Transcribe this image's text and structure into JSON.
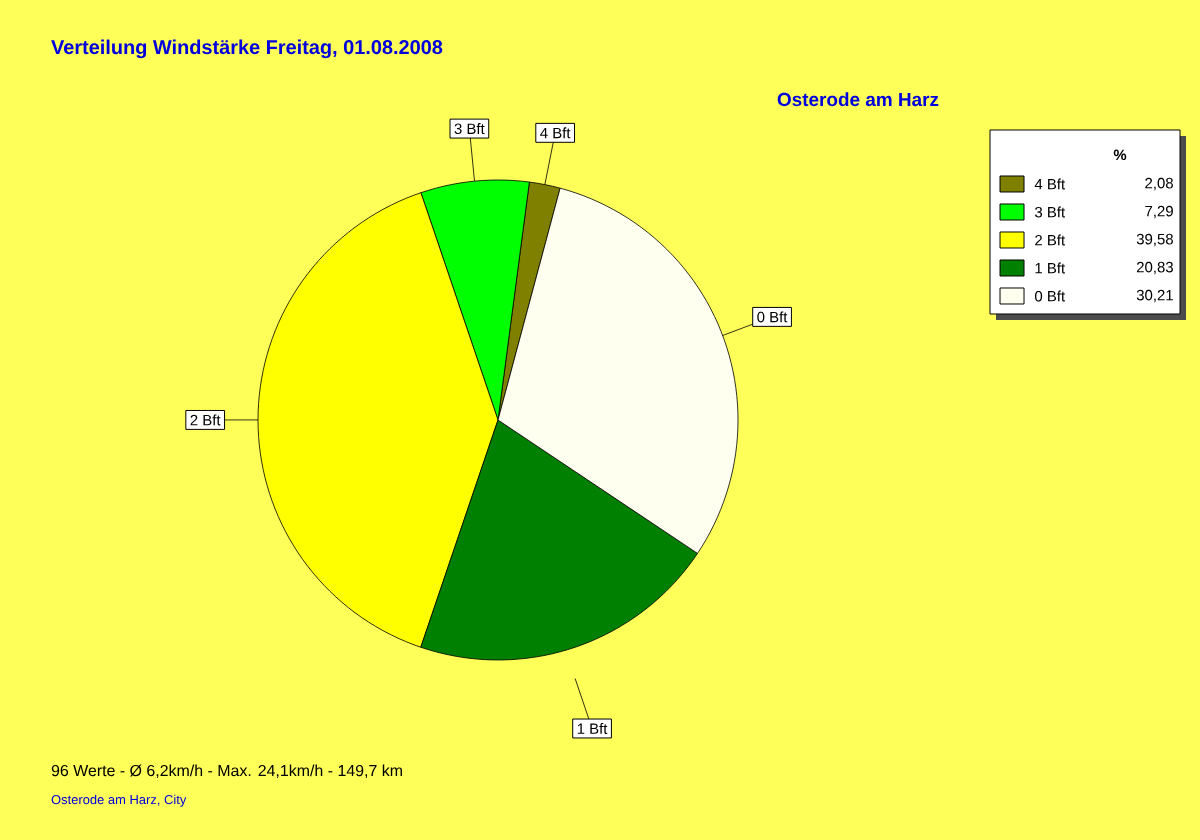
{
  "chart_data": {
    "type": "pie",
    "title": "Verteilung Windstärke  Freitag, 01.08.2008",
    "subtitle": "Osterode am Harz",
    "categories": [
      "4 Bft",
      "3 Bft",
      "2 Bft",
      "1 Bft",
      "0 Bft"
    ],
    "values": [
      2.08,
      7.29,
      39.58,
      20.83,
      30.21
    ],
    "value_labels": [
      "2,08",
      "7,29",
      "39,58",
      "20,83",
      "30,21"
    ],
    "colors": [
      "#808000",
      "#00ff00",
      "#ffff00",
      "#008000",
      "#fffff0"
    ],
    "legend": "top right",
    "legend_title": "%",
    "annotations": [
      "96 Werte   -   Ø 6,2km/h  -  Max. 24,1km/h   -   149,7 km",
      "Osterode am Harz, City"
    ]
  }
}
